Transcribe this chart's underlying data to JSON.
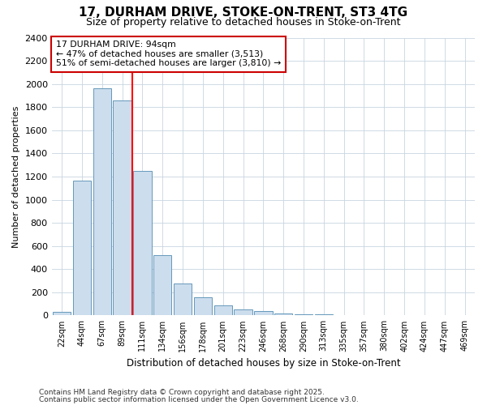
{
  "title1": "17, DURHAM DRIVE, STOKE-ON-TRENT, ST3 4TG",
  "title2": "Size of property relative to detached houses in Stoke-on-Trent",
  "xlabel": "Distribution of detached houses by size in Stoke-on-Trent",
  "ylabel": "Number of detached properties",
  "categories": [
    "22sqm",
    "44sqm",
    "67sqm",
    "89sqm",
    "111sqm",
    "134sqm",
    "156sqm",
    "178sqm",
    "201sqm",
    "223sqm",
    "246sqm",
    "268sqm",
    "290sqm",
    "313sqm",
    "335sqm",
    "357sqm",
    "380sqm",
    "402sqm",
    "424sqm",
    "447sqm",
    "469sqm"
  ],
  "values": [
    30,
    1165,
    1960,
    1855,
    1250,
    520,
    275,
    155,
    90,
    55,
    35,
    20,
    12,
    8,
    5,
    3,
    2,
    1,
    1,
    0,
    0
  ],
  "bar_color": "#ccdded",
  "bar_edge_color": "#6699bb",
  "red_line_x": 3.5,
  "annotation_line1": "17 DURHAM DRIVE: 94sqm",
  "annotation_line2": "← 47% of detached houses are smaller (3,513)",
  "annotation_line3": "51% of semi-detached houses are larger (3,810) →",
  "annotation_box_facecolor": "#ffffff",
  "annotation_box_edgecolor": "#cc0000",
  "ylim": [
    0,
    2400
  ],
  "yticks": [
    0,
    200,
    400,
    600,
    800,
    1000,
    1200,
    1400,
    1600,
    1800,
    2000,
    2200,
    2400
  ],
  "fig_facecolor": "#ffffff",
  "plot_facecolor": "#ffffff",
  "grid_color": "#c8d4e0",
  "footer1": "Contains HM Land Registry data © Crown copyright and database right 2025.",
  "footer2": "Contains public sector information licensed under the Open Government Licence v3.0."
}
